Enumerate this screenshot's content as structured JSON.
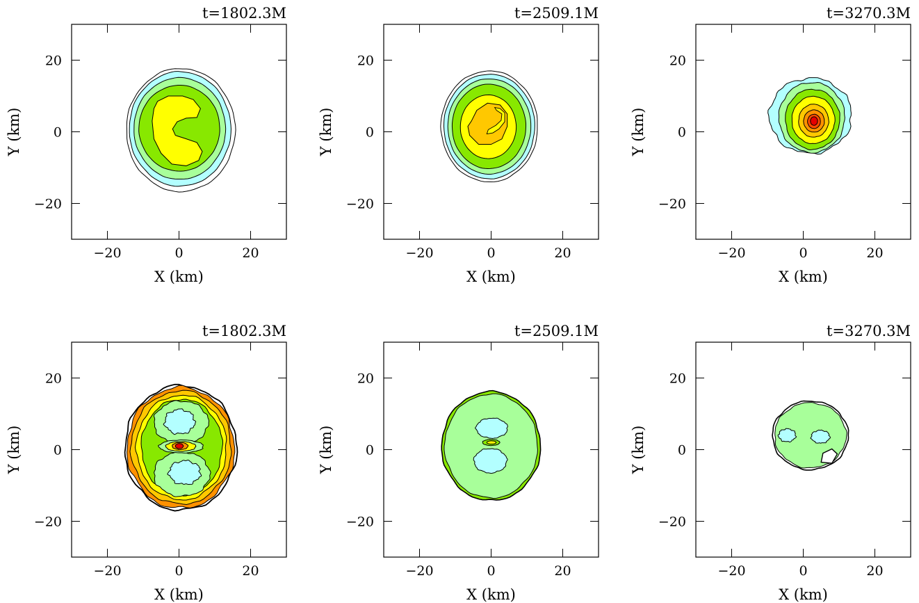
{
  "chart_data": [
    {
      "type": "contour",
      "title": "t=1802.3M",
      "xlabel": "X (km)",
      "ylabel": "Y (km)",
      "xlim": [
        -30,
        30
      ],
      "ylim": [
        -30,
        30
      ],
      "xticks": [
        -20,
        0,
        20
      ],
      "yticks": [
        -20,
        0,
        20
      ],
      "xtick_labels": [
        "−20",
        "0",
        "20"
      ],
      "ytick_labels": [
        "−20",
        "0",
        "20"
      ],
      "row": 0,
      "col": 0,
      "pattern": "c-shape"
    },
    {
      "type": "contour",
      "title": "t=2509.1M",
      "xlabel": "X (km)",
      "ylabel": "Y (km)",
      "xlim": [
        -30,
        30
      ],
      "ylim": [
        -30,
        30
      ],
      "xticks": [
        -20,
        0,
        20
      ],
      "yticks": [
        -20,
        0,
        20
      ],
      "xtick_labels": [
        "−20",
        "0",
        "20"
      ],
      "ytick_labels": [
        "−20",
        "0",
        "20"
      ],
      "row": 0,
      "col": 1,
      "pattern": "hook"
    },
    {
      "type": "contour",
      "title": "t=3270.3M",
      "xlabel": "X (km)",
      "ylabel": "Y (km)",
      "xlim": [
        -30,
        30
      ],
      "ylim": [
        -30,
        30
      ],
      "xticks": [
        -20,
        0,
        20
      ],
      "yticks": [
        -20,
        0,
        20
      ],
      "xtick_labels": [
        "−20",
        "0",
        "20"
      ],
      "ytick_labels": [
        "−20",
        "0",
        "20"
      ],
      "row": 0,
      "col": 2,
      "pattern": "peaked"
    },
    {
      "type": "contour",
      "title": "t=1802.3M",
      "xlabel": "X (km)",
      "ylabel": "Y (km)",
      "xlim": [
        -30,
        30
      ],
      "ylim": [
        -30,
        30
      ],
      "xticks": [
        -20,
        0,
        20
      ],
      "yticks": [
        -20,
        0,
        20
      ],
      "xtick_labels": [
        "−20",
        "0",
        "20"
      ],
      "ytick_labels": [
        "−20",
        "0",
        "20"
      ],
      "row": 1,
      "col": 0,
      "pattern": "turbulent"
    },
    {
      "type": "contour",
      "title": "t=2509.1M",
      "xlabel": "X (km)",
      "ylabel": "Y (km)",
      "xlim": [
        -30,
        30
      ],
      "ylim": [
        -30,
        30
      ],
      "xticks": [
        -20,
        0,
        20
      ],
      "yticks": [
        -20,
        0,
        20
      ],
      "xtick_labels": [
        "−20",
        "0",
        "20"
      ],
      "ytick_labels": [
        "−20",
        "0",
        "20"
      ],
      "row": 1,
      "col": 1,
      "pattern": "smooth-disk"
    },
    {
      "type": "contour",
      "title": "t=3270.3M",
      "xlabel": "X (km)",
      "ylabel": "Y (km)",
      "xlim": [
        -30,
        30
      ],
      "ylim": [
        -30,
        30
      ],
      "xticks": [
        -20,
        0,
        20
      ],
      "yticks": [
        -20,
        0,
        20
      ],
      "xtick_labels": [
        "−20",
        "0",
        "20"
      ],
      "ytick_labels": [
        "−20",
        "0",
        "20"
      ],
      "row": 1,
      "col": 2,
      "pattern": "small-disk"
    }
  ],
  "palette": {
    "light_blue": "#b3ffff",
    "light_green": "#a8ff9a",
    "yellow_green": "#88e800",
    "yellow": "#ffff00",
    "orange_yellow": "#ffc800",
    "orange": "#ff9100",
    "red_orange": "#ff4a00",
    "red": "#e60000"
  }
}
